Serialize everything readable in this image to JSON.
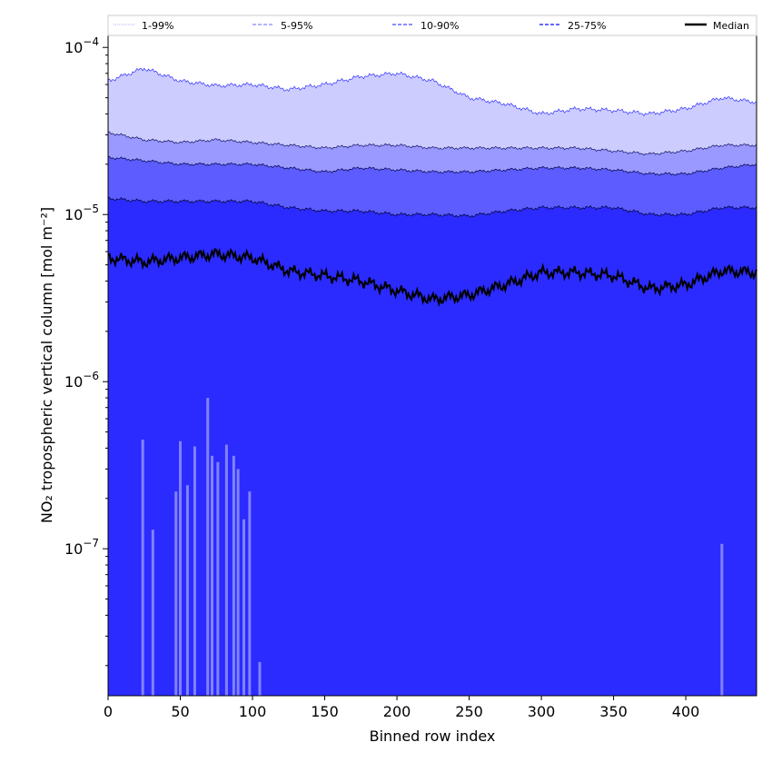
{
  "chart_data": {
    "type": "area",
    "xlabel": "Binned row index",
    "ylabel": "NO₂ tropospheric vertical column [mol m⁻²]",
    "yscale": "log",
    "xlim": [
      0,
      449
    ],
    "ylim": [
      1.32e-08,
      0.000118
    ],
    "xticks": [
      0,
      50,
      100,
      150,
      200,
      250,
      300,
      350,
      400
    ],
    "yticks": [
      {
        "value": 1e-07,
        "base": "10",
        "exp": "−7"
      },
      {
        "value": 1e-06,
        "base": "10",
        "exp": "−6"
      },
      {
        "value": 1e-05,
        "base": "10",
        "exp": "−5"
      },
      {
        "value": 0.0001,
        "base": "10",
        "exp": "−4"
      }
    ],
    "legend": {
      "placement": "top",
      "entries": [
        {
          "label": "1-99%",
          "color": "#ccccff",
          "style": "dotted"
        },
        {
          "label": "5-95%",
          "color": "#9999ff",
          "style": "dashed"
        },
        {
          "label": "10-90%",
          "color": "#6666ff",
          "style": "dashed"
        },
        {
          "label": "25-75%",
          "color": "#3333ff",
          "style": "dashed"
        },
        {
          "label": "Median",
          "color": "#000000",
          "style": "solid"
        }
      ]
    },
    "fill_colors": {
      "p1_99": "#ccccff",
      "p5_95": "#9999ff",
      "p10_90": "#5c5cff",
      "p25_75": "#2b2bff"
    },
    "x": [
      0,
      25,
      50,
      75,
      100,
      125,
      150,
      175,
      200,
      225,
      250,
      275,
      300,
      325,
      350,
      375,
      400,
      425,
      449
    ],
    "series": [
      {
        "name": "99%",
        "values": [
          6.3e-05,
          7.5e-05,
          6.3e-05,
          5.9e-05,
          6e-05,
          5.6e-05,
          6e-05,
          6.7e-05,
          7e-05,
          6.3e-05,
          5e-05,
          4.6e-05,
          4e-05,
          4.3e-05,
          4.2e-05,
          4e-05,
          4.3e-05,
          5e-05,
          4.7e-05
        ]
      },
      {
        "name": "95%",
        "values": [
          3.1e-05,
          2.8e-05,
          2.7e-05,
          2.8e-05,
          2.7e-05,
          2.6e-05,
          2.5e-05,
          2.6e-05,
          2.6e-05,
          2.5e-05,
          2.5e-05,
          2.5e-05,
          2.5e-05,
          2.5e-05,
          2.4e-05,
          2.3e-05,
          2.4e-05,
          2.6e-05,
          2.6e-05
        ]
      },
      {
        "name": "90%",
        "values": [
          2.2e-05,
          2.1e-05,
          2e-05,
          2e-05,
          2e-05,
          1.9e-05,
          1.8e-05,
          1.9e-05,
          1.85e-05,
          1.8e-05,
          1.8e-05,
          1.85e-05,
          1.9e-05,
          1.9e-05,
          1.85e-05,
          1.75e-05,
          1.75e-05,
          1.9e-05,
          2e-05
        ]
      },
      {
        "name": "75%",
        "values": [
          1.25e-05,
          1.2e-05,
          1.2e-05,
          1.2e-05,
          1.2e-05,
          1.1e-05,
          1.05e-05,
          1.05e-05,
          1e-05,
          1e-05,
          9.8e-06,
          1.05e-05,
          1.1e-05,
          1.1e-05,
          1.1e-05,
          1e-05,
          1e-05,
          1.1e-05,
          1.1e-05
        ]
      },
      {
        "name": "Median",
        "values": [
          5.5e-06,
          5.2e-06,
          5.5e-06,
          5.8e-06,
          5.5e-06,
          4.6e-06,
          4.3e-06,
          4e-06,
          3.5e-06,
          3.1e-06,
          3.3e-06,
          3.8e-06,
          4.5e-06,
          4.5e-06,
          4.3e-06,
          3.6e-06,
          3.8e-06,
          4.6e-06,
          4.5e-06
        ]
      }
    ],
    "lower_1pct_spikes": [
      [
        24,
        4.5e-07
      ],
      [
        31,
        1.3e-07
      ],
      [
        47,
        2.2e-07
      ],
      [
        50,
        4.4e-07
      ],
      [
        55,
        2.4e-07
      ],
      [
        60,
        4.1e-07
      ],
      [
        69,
        8e-07
      ],
      [
        72,
        3.6e-07
      ],
      [
        76,
        3.3e-07
      ],
      [
        82,
        4.2e-07
      ],
      [
        87,
        3.6e-07
      ],
      [
        90,
        3e-07
      ],
      [
        94,
        1.5e-07
      ],
      [
        98,
        2.2e-07
      ],
      [
        105,
        2.1e-08
      ],
      [
        425,
        1.07e-07
      ]
    ]
  }
}
